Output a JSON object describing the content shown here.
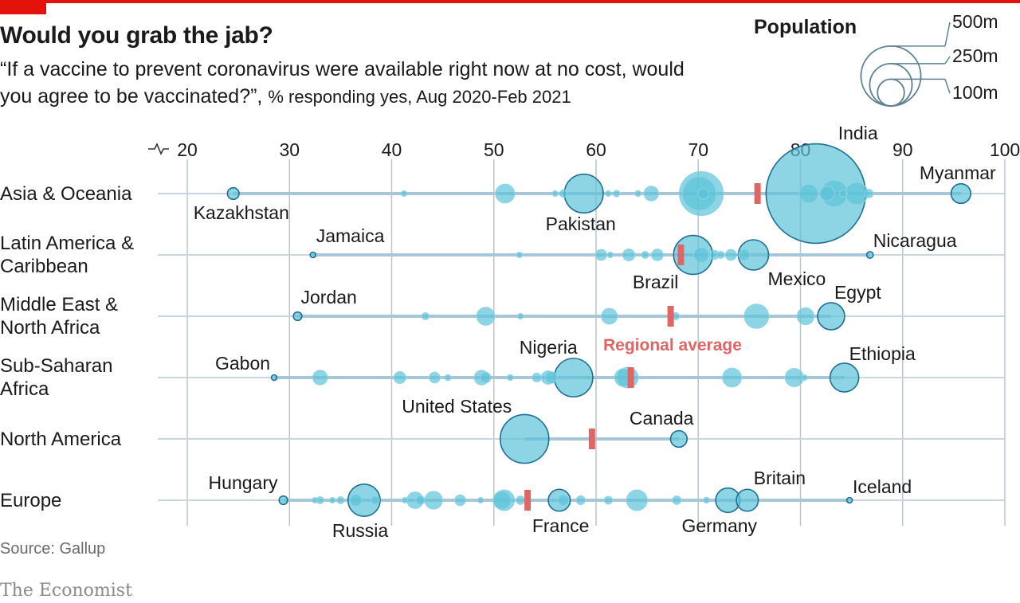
{
  "header": {
    "title": "Would you grab the jab?",
    "subtitle_quote": "“If a vaccine to prevent coronavirus were available right now at no cost, would you agree to be vaccinated?”,",
    "subtitle_note": "% responding yes, Aug 2020-Feb 2021"
  },
  "footer": {
    "source": "Source: Gallup",
    "brand": "The Economist"
  },
  "colors": {
    "accent": "#e3120b",
    "bubble": "#5cc3d9",
    "bubble_stroke": "#1f6f94",
    "average": "#e06666",
    "grid": "#b9c6cf",
    "row_line": "#a7c7d9"
  },
  "chart_data": {
    "type": "scatter",
    "title": "Would you grab the jab?",
    "x_axis": {
      "min": 20,
      "max": 100,
      "ticks": [
        20,
        30,
        40,
        50,
        60,
        70,
        80,
        90,
        100
      ],
      "broken_axis_marker": true
    },
    "size_legend": {
      "title": "Population",
      "unit": "m",
      "values": [
        500,
        250,
        100
      ],
      "labels": [
        "500m",
        "250m",
        "100m"
      ]
    },
    "average_label": "Regional average",
    "regions": [
      {
        "name": "Asia & Oceania",
        "label_lines": [
          "Asia & Oceania"
        ],
        "average": 75.8,
        "points": [
          {
            "x": 24.5,
            "pop": 19,
            "label": "Kazakhstan"
          },
          {
            "x": 41.2,
            "pop": 4
          },
          {
            "x": 51.1,
            "pop": 50
          },
          {
            "x": 56.0,
            "pop": 3
          },
          {
            "x": 56.8,
            "pop": 8
          },
          {
            "x": 58.8,
            "pop": 210,
            "label": "Pakistan"
          },
          {
            "x": 61.2,
            "pop": 3
          },
          {
            "x": 62.0,
            "pop": 6
          },
          {
            "x": 64.1,
            "pop": 5
          },
          {
            "x": 65.4,
            "pop": 30
          },
          {
            "x": 70.1,
            "pop": 160
          },
          {
            "x": 70.3,
            "pop": 270
          },
          {
            "x": 70.5,
            "pop": 17
          },
          {
            "x": 81.5,
            "pop": 1380,
            "label": "India"
          },
          {
            "x": 80.8,
            "pop": 50
          },
          {
            "x": 82.6,
            "pop": 30
          },
          {
            "x": 83.3,
            "pop": 100
          },
          {
            "x": 84.2,
            "pop": 8
          },
          {
            "x": 85.5,
            "pop": 70
          },
          {
            "x": 86.7,
            "pop": 10
          },
          {
            "x": 95.7,
            "pop": 54,
            "label": "Myanmar"
          }
        ]
      },
      {
        "name": "Latin America & Caribbean",
        "label_lines": [
          "Latin America &",
          "Caribbean"
        ],
        "average": 68.3,
        "points": [
          {
            "x": 32.3,
            "pop": 3,
            "label": "Jamaica"
          },
          {
            "x": 52.5,
            "pop": 4
          },
          {
            "x": 60.5,
            "pop": 17
          },
          {
            "x": 61.4,
            "pop": 3
          },
          {
            "x": 63.2,
            "pop": 20
          },
          {
            "x": 64.8,
            "pop": 7
          },
          {
            "x": 66.0,
            "pop": 19
          },
          {
            "x": 69.5,
            "pop": 212,
            "label": "Brazil"
          },
          {
            "x": 70.3,
            "pop": 33
          },
          {
            "x": 71.6,
            "pop": 11
          },
          {
            "x": 72.2,
            "pop": 7
          },
          {
            "x": 73.2,
            "pop": 17
          },
          {
            "x": 74.5,
            "pop": 18
          },
          {
            "x": 75.4,
            "pop": 128,
            "label": "Mexico"
          },
          {
            "x": 86.8,
            "pop": 6,
            "label": "Nicaragua"
          }
        ]
      },
      {
        "name": "Middle East & North Africa",
        "label_lines": [
          "Middle East &",
          "North Africa"
        ],
        "average": 67.3,
        "points": [
          {
            "x": 30.8,
            "pop": 10,
            "label": "Jordan"
          },
          {
            "x": 43.3,
            "pop": 7
          },
          {
            "x": 49.2,
            "pop": 45
          },
          {
            "x": 52.6,
            "pop": 2
          },
          {
            "x": 61.3,
            "pop": 35
          },
          {
            "x": 67.8,
            "pop": 7
          },
          {
            "x": 75.7,
            "pop": 83
          },
          {
            "x": 80.5,
            "pop": 40
          },
          {
            "x": 83.0,
            "pop": 102,
            "label": "Egypt"
          }
        ]
      },
      {
        "name": "Sub-Saharan Africa",
        "label_lines": [
          "Sub-Saharan",
          "Africa"
        ],
        "average": 63.4,
        "points": [
          {
            "x": 28.5,
            "pop": 2,
            "label": "Gabon"
          },
          {
            "x": 33.0,
            "pop": 30
          },
          {
            "x": 40.8,
            "pop": 20
          },
          {
            "x": 44.2,
            "pop": 16
          },
          {
            "x": 45.5,
            "pop": 5
          },
          {
            "x": 48.8,
            "pop": 30
          },
          {
            "x": 49.2,
            "pop": 15
          },
          {
            "x": 51.6,
            "pop": 5
          },
          {
            "x": 54.2,
            "pop": 11
          },
          {
            "x": 55.3,
            "pop": 25
          },
          {
            "x": 55.6,
            "pop": 19
          },
          {
            "x": 57.8,
            "pop": 206,
            "label": "Nigeria"
          },
          {
            "x": 62.7,
            "pop": 45
          },
          {
            "x": 63.1,
            "pop": 60
          },
          {
            "x": 73.3,
            "pop": 50
          },
          {
            "x": 79.4,
            "pop": 47
          },
          {
            "x": 80.4,
            "pop": 3
          },
          {
            "x": 84.3,
            "pop": 115,
            "label": "Ethiopia"
          }
        ]
      },
      {
        "name": "North America",
        "label_lines": [
          "North America"
        ],
        "average": 59.6,
        "points": [
          {
            "x": 53.0,
            "pop": 330,
            "label": "United States"
          },
          {
            "x": 68.1,
            "pop": 38,
            "label": "Canada"
          }
        ]
      },
      {
        "name": "Europe",
        "label_lines": [
          "Europe"
        ],
        "average": 53.3,
        "points": [
          {
            "x": 29.4,
            "pop": 10,
            "label": "Hungary"
          },
          {
            "x": 32.5,
            "pop": 3
          },
          {
            "x": 33.0,
            "pop": 7
          },
          {
            "x": 34.2,
            "pop": 4
          },
          {
            "x": 35.0,
            "pop": 7
          },
          {
            "x": 36.5,
            "pop": 20
          },
          {
            "x": 37.3,
            "pop": 144,
            "label": "Russia"
          },
          {
            "x": 38.4,
            "pop": 10
          },
          {
            "x": 41.3,
            "pop": 4
          },
          {
            "x": 42.3,
            "pop": 38
          },
          {
            "x": 42.8,
            "pop": 11
          },
          {
            "x": 44.1,
            "pop": 44
          },
          {
            "x": 46.7,
            "pop": 16
          },
          {
            "x": 48.7,
            "pop": 2
          },
          {
            "x": 50.8,
            "pop": 45
          },
          {
            "x": 51.0,
            "pop": 60
          },
          {
            "x": 52.6,
            "pop": 10
          },
          {
            "x": 56.4,
            "pop": 67,
            "label": "France"
          },
          {
            "x": 56.8,
            "pop": 17
          },
          {
            "x": 58.5,
            "pop": 11
          },
          {
            "x": 61.2,
            "pop": 9
          },
          {
            "x": 64.0,
            "pop": 60
          },
          {
            "x": 67.9,
            "pop": 10
          },
          {
            "x": 70.8,
            "pop": 5
          },
          {
            "x": 72.9,
            "pop": 83,
            "label": "Germany"
          },
          {
            "x": 74.8,
            "pop": 67,
            "label": "Britain"
          },
          {
            "x": 84.8,
            "pop": 0.4,
            "label": "Iceland"
          }
        ]
      }
    ]
  }
}
